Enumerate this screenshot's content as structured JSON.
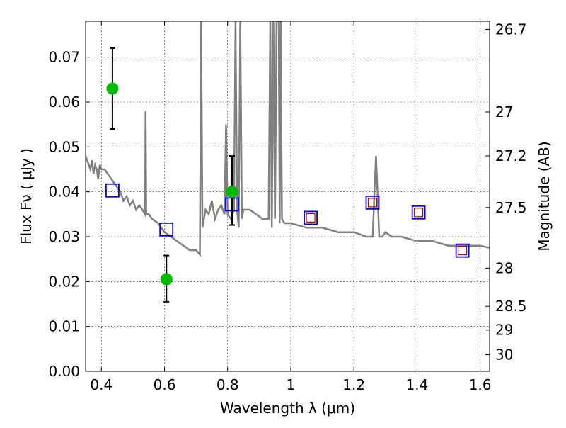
{
  "chart_data": {
    "type": "scatter",
    "xlabel": "Wavelength  λ (μm)",
    "ylabel": "Flux  Fν  ( μJy )",
    "y2label": "Magnitude (AB)",
    "xlim": [
      0.35,
      1.63
    ],
    "ylim": [
      0.0,
      0.078
    ],
    "grid": true,
    "xticks": [
      {
        "v": 0.4,
        "label": "0.4"
      },
      {
        "v": 0.6,
        "label": "0.6"
      },
      {
        "v": 0.8,
        "label": "0.8"
      },
      {
        "v": 1.0,
        "label": "1"
      },
      {
        "v": 1.2,
        "label": "1.2"
      },
      {
        "v": 1.4,
        "label": "1.4"
      },
      {
        "v": 1.6,
        "label": "1.6"
      }
    ],
    "yticks": [
      {
        "v": 0.0,
        "label": "0.00"
      },
      {
        "v": 0.01,
        "label": "0.01"
      },
      {
        "v": 0.02,
        "label": "0.02"
      },
      {
        "v": 0.03,
        "label": "0.03"
      },
      {
        "v": 0.04,
        "label": "0.04"
      },
      {
        "v": 0.05,
        "label": "0.05"
      },
      {
        "v": 0.06,
        "label": "0.06"
      },
      {
        "v": 0.07,
        "label": "0.07"
      }
    ],
    "y2ticks": [
      {
        "flux": 0.0762,
        "label": "26.7"
      },
      {
        "flux": 0.0578,
        "label": "27"
      },
      {
        "flux": 0.048,
        "label": "27.2"
      },
      {
        "flux": 0.0365,
        "label": "27.5"
      },
      {
        "flux": 0.023,
        "label": "28"
      },
      {
        "flux": 0.0145,
        "label": "28.5"
      },
      {
        "flux": 0.0092,
        "label": "29"
      },
      {
        "flux": 0.0037,
        "label": "30"
      }
    ],
    "colors": {
      "spectrum": "#808080",
      "observed": "#00bb00",
      "model_synth": "#0000ee",
      "model_inner": "#cc0000",
      "errorbar": "#000000"
    },
    "spectrum": {
      "x": [
        0.35,
        0.355,
        0.36,
        0.365,
        0.37,
        0.375,
        0.38,
        0.385,
        0.39,
        0.395,
        0.4,
        0.41,
        0.42,
        0.43,
        0.44,
        0.45,
        0.46,
        0.47,
        0.48,
        0.49,
        0.5,
        0.51,
        0.52,
        0.53,
        0.538,
        0.54,
        0.542,
        0.55,
        0.56,
        0.58,
        0.6,
        0.62,
        0.64,
        0.66,
        0.68,
        0.7,
        0.712,
        0.716,
        0.72,
        0.725,
        0.73,
        0.74,
        0.75,
        0.76,
        0.77,
        0.78,
        0.79,
        0.795,
        0.8,
        0.81,
        0.82,
        0.825,
        0.83,
        0.835,
        0.84,
        0.845,
        0.85,
        0.87,
        0.89,
        0.91,
        0.93,
        0.935,
        0.94,
        0.945,
        0.95,
        0.955,
        0.958,
        0.962,
        0.965,
        0.968,
        0.972,
        0.98,
        1.0,
        1.05,
        1.1,
        1.15,
        1.2,
        1.24,
        1.26,
        1.265,
        1.27,
        1.275,
        1.28,
        1.29,
        1.3,
        1.32,
        1.35,
        1.4,
        1.45,
        1.5,
        1.55,
        1.6,
        1.63
      ],
      "y": [
        0.048,
        0.047,
        0.046,
        0.045,
        0.047,
        0.044,
        0.046,
        0.045,
        0.043,
        0.046,
        0.045,
        0.045,
        0.044,
        0.043,
        0.042,
        0.041,
        0.04,
        0.038,
        0.039,
        0.037,
        0.038,
        0.036,
        0.037,
        0.036,
        0.035,
        0.058,
        0.035,
        0.035,
        0.034,
        0.033,
        0.031,
        0.03,
        0.029,
        0.028,
        0.027,
        0.027,
        0.026,
        0.078,
        0.032,
        0.034,
        0.036,
        0.035,
        0.038,
        0.034,
        0.036,
        0.037,
        0.035,
        0.055,
        0.035,
        0.034,
        0.036,
        0.078,
        0.036,
        0.032,
        0.078,
        0.034,
        0.036,
        0.036,
        0.035,
        0.034,
        0.034,
        0.078,
        0.032,
        0.078,
        0.034,
        0.078,
        0.078,
        0.078,
        0.033,
        0.078,
        0.034,
        0.033,
        0.033,
        0.032,
        0.032,
        0.031,
        0.031,
        0.03,
        0.03,
        0.04,
        0.048,
        0.04,
        0.03,
        0.03,
        0.031,
        0.03,
        0.03,
        0.029,
        0.029,
        0.028,
        0.028,
        0.028,
        0.0275
      ]
    },
    "observed": [
      {
        "x": 0.435,
        "y": 0.063,
        "err_low": 0.054,
        "err_high": 0.072
      },
      {
        "x": 0.606,
        "y": 0.0205,
        "err_low": 0.0155,
        "err_high": 0.0258
      },
      {
        "x": 0.814,
        "y": 0.04,
        "err_low": 0.0326,
        "err_high": 0.048
      }
    ],
    "model_points": [
      {
        "x": 0.435,
        "y": 0.0403,
        "inner": false
      },
      {
        "x": 0.606,
        "y": 0.0316,
        "inner": false
      },
      {
        "x": 0.814,
        "y": 0.0372,
        "inner": false
      },
      {
        "x": 1.063,
        "y": 0.0342,
        "inner": true
      },
      {
        "x": 1.259,
        "y": 0.0376,
        "inner": true
      },
      {
        "x": 1.405,
        "y": 0.0354,
        "inner": true
      },
      {
        "x": 1.544,
        "y": 0.0269,
        "inner": true
      }
    ]
  }
}
